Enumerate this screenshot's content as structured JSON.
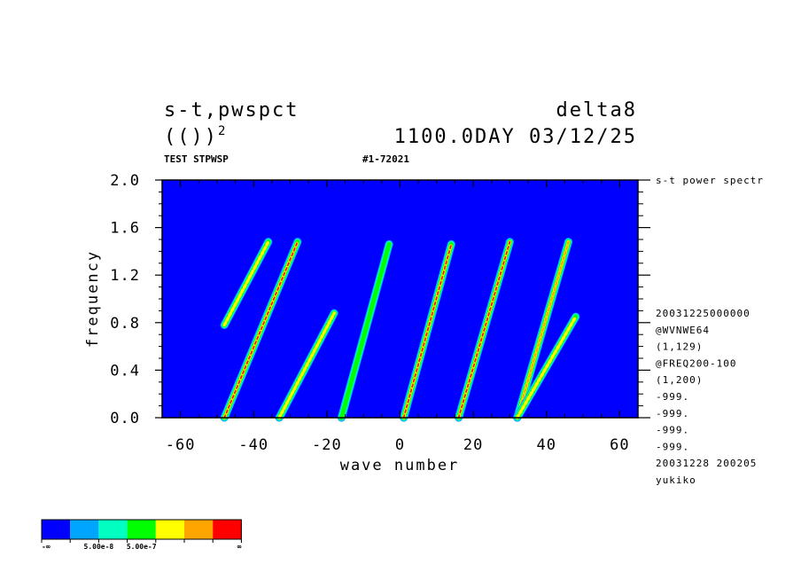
{
  "header": {
    "title_left": "s-t,pwspct",
    "subtitle_left": "(()",
    "subtitle_sup": "2",
    "title_right": "delta8",
    "subtitle_right": "1100.0DAY 03/12/25",
    "test_label": "TEST STPWSP",
    "run_id": "#1-72021"
  },
  "side_info": {
    "top_label": "s-t power spectr",
    "lines": [
      "20031225000000",
      "@WVNWE64",
      "(1,129)",
      "@FREQ200-100",
      "(1,200)",
      "-999.",
      "-999.",
      "-999.",
      "-999.",
      "20031228 200205",
      "yukiko"
    ]
  },
  "chart_data": {
    "type": "heatmap",
    "xlabel": "wave number",
    "ylabel": "frequency",
    "xlim": [
      -65,
      65
    ],
    "ylim": [
      0.0,
      2.0
    ],
    "x_ticks": [
      "-60",
      "-40",
      "-20",
      "0",
      "20",
      "40",
      "60"
    ],
    "x_tick_values": [
      -60,
      -40,
      -20,
      0,
      20,
      40,
      60
    ],
    "y_ticks": [
      "0.0",
      "0.4",
      "0.8",
      "1.2",
      "1.6",
      "2.0"
    ],
    "y_tick_values": [
      0.0,
      0.4,
      0.8,
      1.2,
      1.6,
      2.0
    ],
    "background_color": "#0000ff",
    "color_levels": [
      "#0000ff",
      "#00a5ff",
      "#00ffc0",
      "#00ff00",
      "#ffff00",
      "#ffa500",
      "#ff0000"
    ],
    "ridges": [
      {
        "k0": -48,
        "k1": -36,
        "f0": 0.78,
        "f1": 1.48,
        "peak": 4
      },
      {
        "k0": -48,
        "k1": -28,
        "f0": 0.0,
        "f1": 1.48,
        "peak": 6
      },
      {
        "k0": -33,
        "k1": -18,
        "f0": 0.0,
        "f1": 0.88,
        "peak": 4
      },
      {
        "k0": -16,
        "k1": -3,
        "f0": 0.0,
        "f1": 1.46,
        "peak": 3
      },
      {
        "k0": 1,
        "k1": 14,
        "f0": 0.0,
        "f1": 1.46,
        "peak": 6
      },
      {
        "k0": 16,
        "k1": 30,
        "f0": 0.0,
        "f1": 1.48,
        "peak": 6
      },
      {
        "k0": 32,
        "k1": 46,
        "f0": 0.0,
        "f1": 1.48,
        "peak": 5
      },
      {
        "k0": 32,
        "k1": 48,
        "f0": 0.0,
        "f1": 0.85,
        "peak": 4
      }
    ],
    "legend": {
      "labels": [
        "-∞",
        "5.00e-8",
        "5.00e-7",
        "∞"
      ]
    }
  }
}
